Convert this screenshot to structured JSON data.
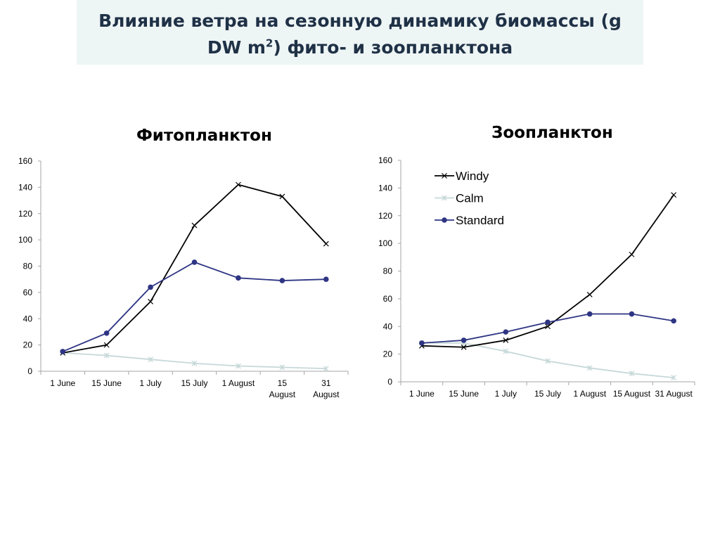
{
  "page": {
    "title_part1": "Влияние ветра на сезонную динамику биомассы (g",
    "title_part2": "DW m",
    "title_sup": "2",
    "title_part3": ") фито- и зоопланктона"
  },
  "colors": {
    "windy": "#000000",
    "calm": "#c7d8d8",
    "standard": "#2e3583",
    "axis": "#a6a6a6"
  },
  "chart_data": [
    {
      "type": "line",
      "title": "Фитопланктон",
      "categories": [
        "1 June",
        "15 June",
        "1 July",
        "15 July",
        "1 August",
        "15 August",
        "31 August"
      ],
      "category_lines": [
        [
          "1 June"
        ],
        [
          "15 June"
        ],
        [
          "1 July"
        ],
        [
          "15 July"
        ],
        [
          "1 August"
        ],
        [
          "15",
          "August"
        ],
        [
          "31",
          "August"
        ]
      ],
      "ylim": [
        0,
        160
      ],
      "yticks": [
        "0",
        "20",
        "40",
        "60",
        "80",
        "100",
        "120",
        "140",
        "160"
      ],
      "legend": null,
      "series": [
        {
          "name": "Windy",
          "marker": "x",
          "color": "#000000",
          "values": [
            14,
            20,
            53,
            111,
            142,
            133,
            97
          ]
        },
        {
          "name": "Calm",
          "marker": "asterisk",
          "color": "#c7d8d8",
          "values": [
            14,
            12,
            9,
            6,
            4,
            3,
            2
          ]
        },
        {
          "name": "Standard",
          "marker": "circle",
          "color": "#2e3583",
          "values": [
            15,
            29,
            64,
            83,
            71,
            69,
            70
          ]
        }
      ]
    },
    {
      "type": "line",
      "title": "Зоопланктон",
      "categories": [
        "1 June",
        "15 June",
        "1 July",
        "15 July",
        "1 August",
        "15 August",
        "31 August"
      ],
      "category_lines": [
        [
          "1 June"
        ],
        [
          "15 June"
        ],
        [
          "1 July"
        ],
        [
          "15 July"
        ],
        [
          "1 August"
        ],
        [
          "15 August"
        ],
        [
          "31 August"
        ]
      ],
      "ylim": [
        0,
        160
      ],
      "yticks": [
        "0",
        "20",
        "40",
        "60",
        "80",
        "100",
        "120",
        "140",
        "160"
      ],
      "legend": "top-left",
      "series": [
        {
          "name": "Windy",
          "marker": "x",
          "color": "#000000",
          "values": [
            26,
            25,
            30,
            40,
            63,
            92,
            135
          ]
        },
        {
          "name": "Calm",
          "marker": "asterisk",
          "color": "#c7d8d8",
          "values": [
            28,
            28,
            22,
            15,
            10,
            6,
            3
          ]
        },
        {
          "name": "Standard",
          "marker": "circle",
          "color": "#2e3583",
          "values": [
            28,
            30,
            36,
            43,
            49,
            49,
            44
          ]
        }
      ]
    }
  ]
}
